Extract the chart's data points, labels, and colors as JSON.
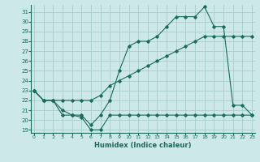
{
  "xlabel": "Humidex (Indice chaleur)",
  "bg_color": "#cce8e8",
  "grid_color": "#aacccc",
  "line_color": "#1a6b5a",
  "x_ticks": [
    0,
    1,
    2,
    3,
    4,
    5,
    6,
    7,
    8,
    9,
    10,
    11,
    12,
    13,
    14,
    15,
    16,
    17,
    18,
    19,
    20,
    21,
    22,
    23
  ],
  "y_ticks": [
    19,
    20,
    21,
    22,
    23,
    24,
    25,
    26,
    27,
    28,
    29,
    30,
    31
  ],
  "xlim": [
    -0.3,
    23.3
  ],
  "ylim": [
    18.7,
    31.7
  ],
  "line1_x": [
    0,
    1,
    2,
    3,
    4,
    5,
    6,
    7,
    8,
    9,
    10,
    11,
    12,
    13,
    14,
    15,
    16,
    17,
    18,
    19,
    20,
    21,
    22,
    23
  ],
  "line1_y": [
    23,
    22,
    22,
    20.5,
    20.5,
    20.3,
    19,
    19,
    20.5,
    20.5,
    20.5,
    20.5,
    20.5,
    20.5,
    20.5,
    20.5,
    20.5,
    20.5,
    20.5,
    20.5,
    20.5,
    20.5,
    20.5,
    20.5
  ],
  "line2_x": [
    0,
    1,
    2,
    3,
    4,
    5,
    6,
    7,
    8,
    9,
    10,
    11,
    12,
    13,
    14,
    15,
    16,
    17,
    18,
    19,
    20,
    21,
    22,
    23
  ],
  "line2_y": [
    23,
    22,
    22,
    22,
    22,
    22,
    22,
    22.5,
    23.5,
    24,
    24.5,
    25,
    25.5,
    26,
    26.5,
    27,
    27.5,
    28,
    28.5,
    28.5,
    28.5,
    28.5,
    28.5,
    28.5
  ],
  "line3_x": [
    0,
    1,
    2,
    3,
    4,
    5,
    6,
    7,
    8,
    9,
    10,
    11,
    12,
    13,
    14,
    15,
    16,
    17,
    18,
    19,
    20,
    21,
    22,
    23
  ],
  "line3_y": [
    23,
    22,
    22,
    21,
    20.5,
    20.5,
    19.5,
    20.5,
    22,
    25,
    27.5,
    28,
    28,
    28.5,
    29.5,
    30.5,
    30.5,
    30.5,
    31.5,
    29.5,
    29.5,
    21.5,
    21.5,
    20.5
  ]
}
